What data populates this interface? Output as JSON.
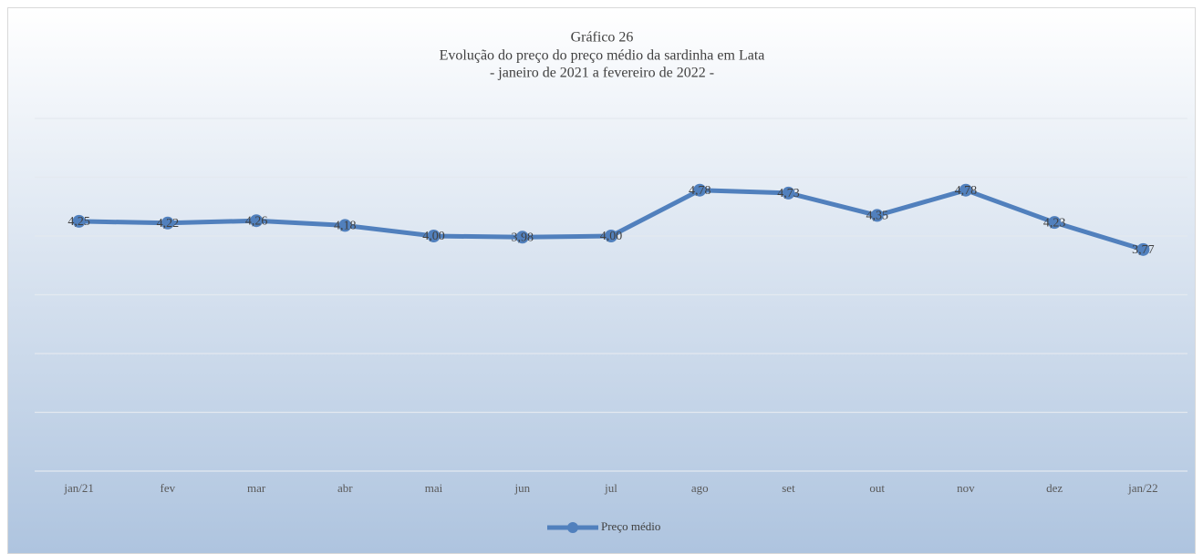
{
  "chart_data": {
    "type": "line",
    "title": [
      "Gráfico 26",
      "Evolução do preço do preço médio da sardinha em Lata",
      "- janeiro de 2021 a fevereiro de 2022 -"
    ],
    "categories": [
      "jan/21",
      "fev",
      "mar",
      "abr",
      "mai",
      "jun",
      "jul",
      "ago",
      "set",
      "out",
      "nov",
      "dez",
      "jan/22"
    ],
    "series": [
      {
        "name": "Preço médio",
        "color": "#5180bd",
        "values": [
          4.25,
          4.22,
          4.26,
          4.18,
          4.0,
          3.98,
          4.0,
          4.78,
          4.73,
          4.35,
          4.78,
          4.23,
          3.77
        ],
        "value_labels": [
          "4,25",
          "4,22",
          "4,26",
          "4,18",
          "4,00",
          "3,98",
          "4,00",
          "4,78",
          "4,73",
          "4,35",
          "4,78",
          "4,23",
          "3,77"
        ]
      }
    ],
    "ylim": [
      0,
      6
    ],
    "yticks": [
      0,
      1,
      2,
      3,
      4,
      5,
      6
    ],
    "grid": true,
    "legend": "bottom"
  }
}
